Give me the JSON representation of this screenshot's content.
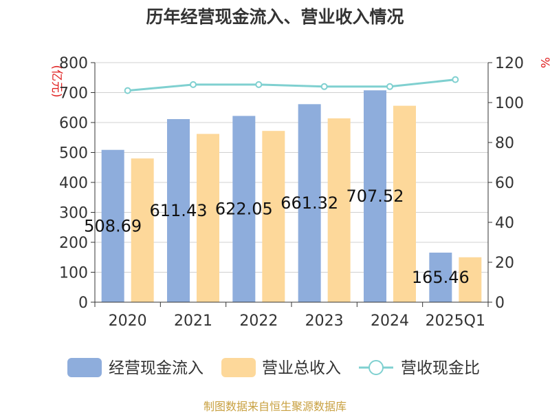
{
  "chart_data": {
    "type": "bar",
    "title": "历年经营现金流入、营业收入情况",
    "categories": [
      "2020",
      "2021",
      "2022",
      "2023",
      "2024",
      "2025Q1"
    ],
    "y_left": {
      "unit": "(亿元)",
      "ylim": [
        0,
        800
      ],
      "ticks": [
        0,
        100,
        200,
        300,
        400,
        500,
        600,
        700,
        800
      ]
    },
    "y_right": {
      "unit": "%",
      "ylim": [
        0,
        120
      ],
      "ticks": [
        0,
        20,
        40,
        60,
        80,
        100,
        120
      ]
    },
    "series": [
      {
        "name": "经营现金流入",
        "type": "bar",
        "axis": "left",
        "color": "#8eaddc",
        "values": [
          508.69,
          611.43,
          622.05,
          661.32,
          707.52,
          165.46
        ],
        "labels": [
          "508.69",
          "611.43",
          "622.05",
          "661.32",
          "707.52",
          "165.46"
        ]
      },
      {
        "name": "营业总收入",
        "type": "bar",
        "axis": "left",
        "color": "#fdd89a",
        "values": [
          480,
          562,
          572,
          614,
          656,
          150
        ]
      },
      {
        "name": "营收现金比",
        "type": "line",
        "axis": "right",
        "color": "#7fd0d0",
        "values": [
          106,
          109,
          109,
          108,
          108,
          111.5
        ]
      }
    ],
    "grid": true,
    "legend_position": "bottom",
    "source": "制图数据来自恒生聚源数据库"
  }
}
